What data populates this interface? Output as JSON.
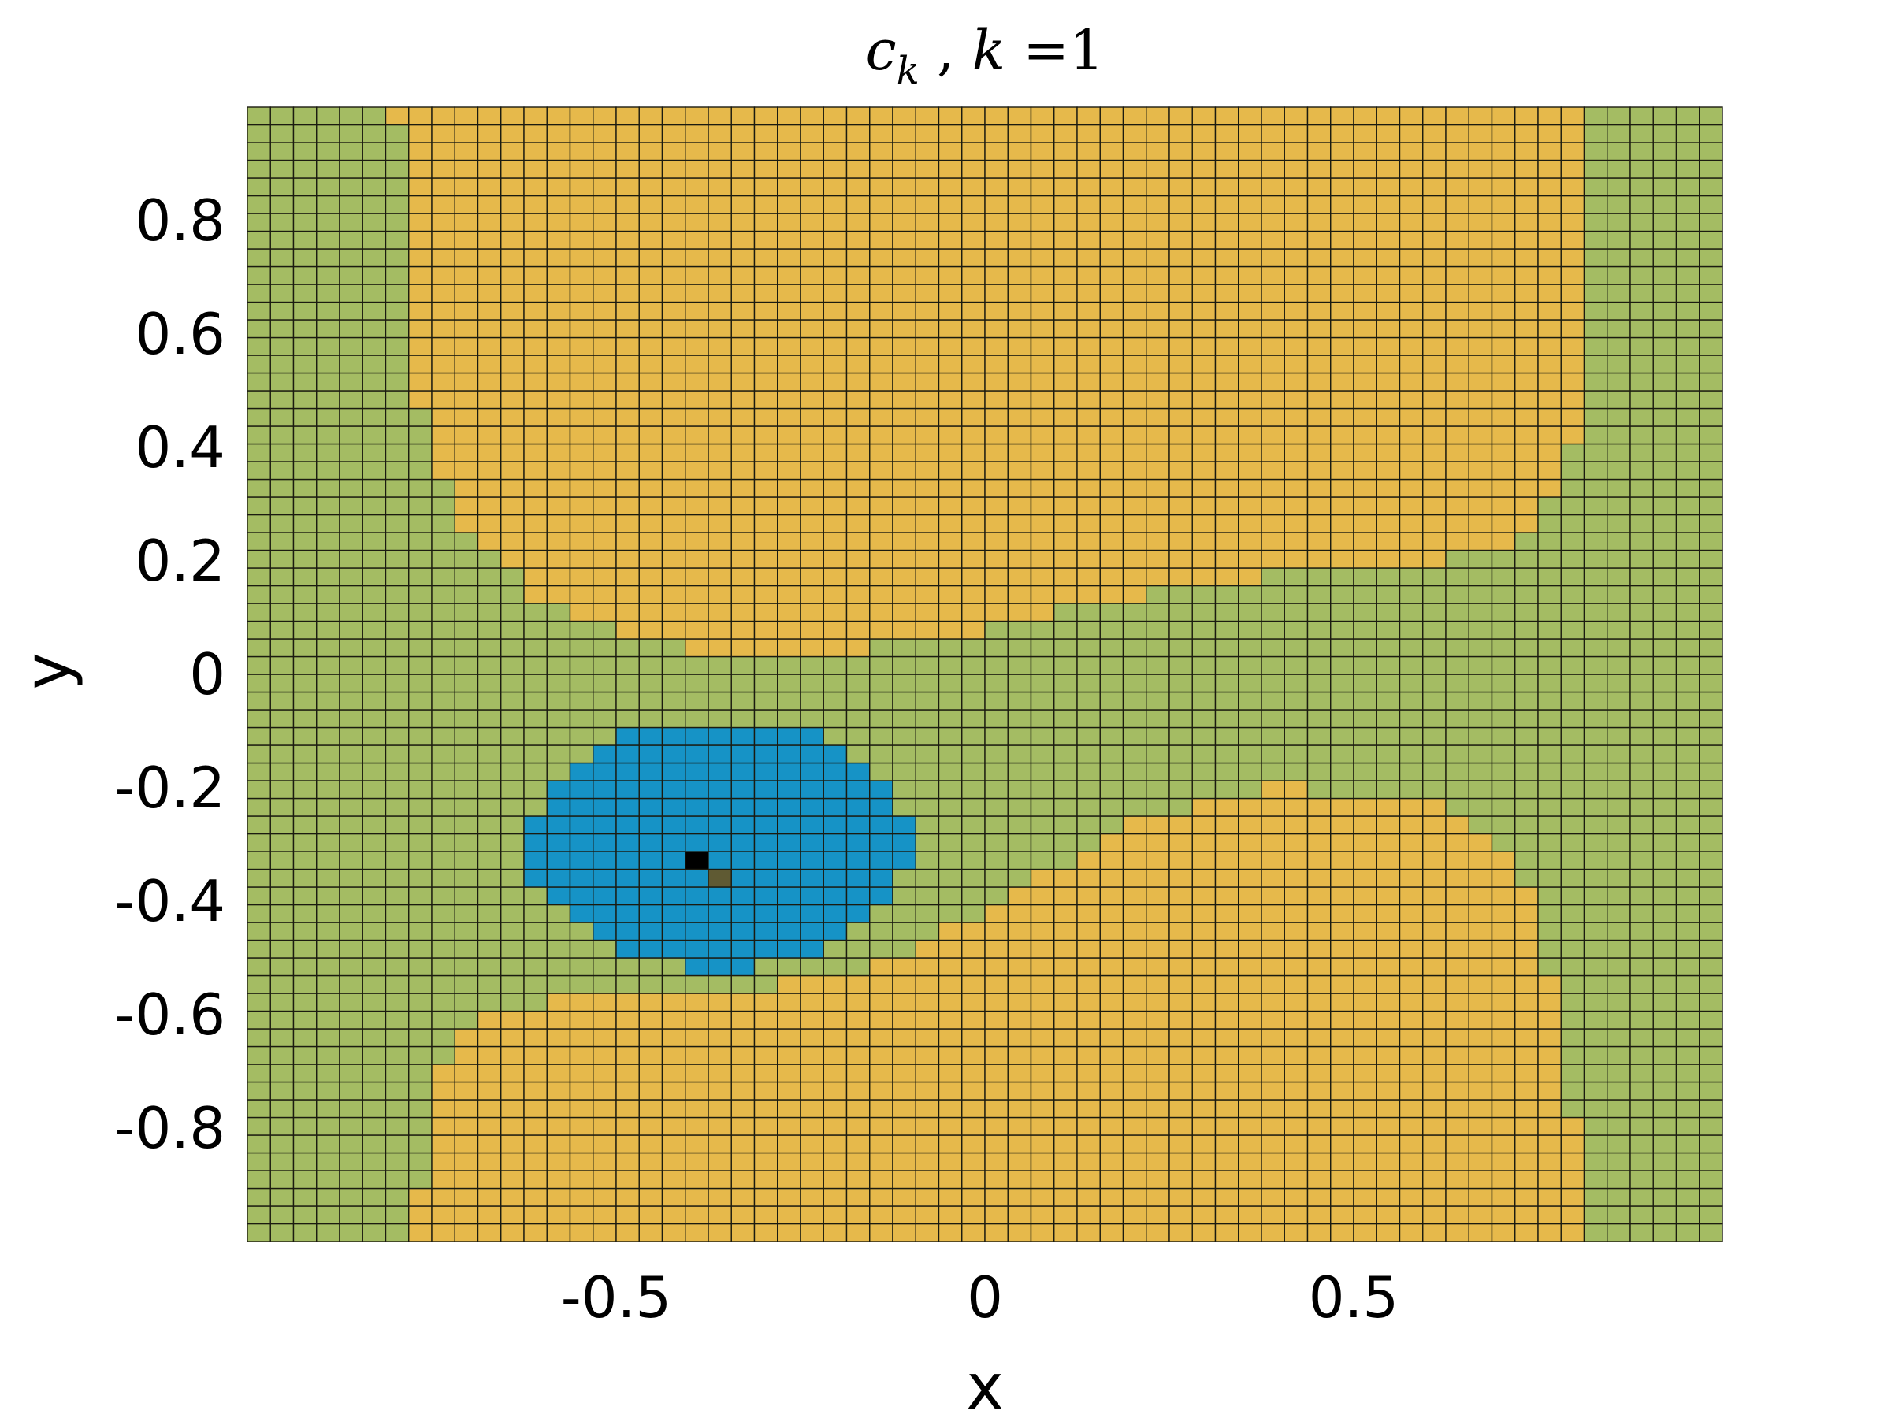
{
  "chart_data": {
    "type": "heatmap",
    "title": "c_k ,  k =1",
    "title_parts": {
      "symbol": "c",
      "subscript": "k",
      "separator": " ,  ",
      "variable": "k",
      "equals": " =",
      "value": "1"
    },
    "xlabel": "x",
    "ylabel": "y",
    "xlim": [
      -1,
      1
    ],
    "ylim": [
      -1,
      1
    ],
    "xticks": [
      -0.5,
      0,
      0.5
    ],
    "xtick_labels": [
      "-0.5",
      "0",
      "0.5"
    ],
    "yticks": [
      -0.8,
      -0.6,
      -0.4,
      -0.2,
      0,
      0.2,
      0.4,
      0.6,
      0.8
    ],
    "ytick_labels": [
      "-0.8",
      "-0.6",
      "-0.4",
      "-0.2",
      "0",
      "0.2",
      "0.4",
      "0.6",
      "0.8"
    ],
    "grid": "cell edges drawn in black",
    "grid_size": [
      64,
      64
    ],
    "point": [
      -0.36,
      -0.34
    ],
    "cluster_colors": {
      "green": "#a4bc63",
      "yellow": "#e6b94b",
      "blue": "#1693c6",
      "marker_black": "#000000",
      "marker_olive": "#5f5a33"
    },
    "regions": {
      "left_band_edge_x": [
        [
          -1.0,
          -0.78
        ],
        [
          -0.6,
          -0.72
        ],
        [
          -0.4,
          -0.68
        ],
        [
          -0.2,
          -0.58
        ],
        [
          0.0,
          -0.48
        ],
        [
          0.2,
          -0.68
        ],
        [
          0.4,
          -0.76
        ],
        [
          0.6,
          -0.78
        ],
        [
          0.8,
          -0.78
        ],
        [
          1.0,
          -0.8
        ]
      ],
      "right_band_edge_x": [
        [
          -1.0,
          0.82
        ],
        [
          -0.8,
          0.8
        ],
        [
          -0.6,
          0.78
        ],
        [
          -0.4,
          0.74
        ],
        [
          -0.2,
          0.66
        ],
        [
          0.0,
          0.62
        ],
        [
          0.2,
          0.72
        ],
        [
          0.4,
          0.8
        ],
        [
          0.6,
          0.82
        ],
        [
          0.8,
          0.82
        ],
        [
          1.0,
          0.82
        ]
      ],
      "upper_yellow_bottom_y": [
        [
          -0.72,
          0.28
        ],
        [
          -0.6,
          0.12
        ],
        [
          -0.4,
          0.04
        ],
        [
          -0.2,
          0.04
        ],
        [
          0.0,
          0.08
        ],
        [
          0.2,
          0.14
        ],
        [
          0.4,
          0.18
        ],
        [
          0.6,
          0.2
        ],
        [
          0.8,
          0.22
        ]
      ],
      "lower_yellow_top_y": [
        [
          -0.8,
          -0.64
        ],
        [
          -0.6,
          -0.58
        ],
        [
          -0.4,
          -0.56
        ],
        [
          -0.2,
          -0.54
        ],
        [
          0.0,
          -0.42
        ],
        [
          0.2,
          -0.26
        ],
        [
          0.4,
          -0.2
        ],
        [
          0.6,
          -0.22
        ],
        [
          0.8,
          -0.36
        ]
      ],
      "blue_blob": {
        "center": [
          -0.36,
          -0.3
        ],
        "radius_x": 0.26,
        "radius_y": 0.22
      }
    }
  }
}
